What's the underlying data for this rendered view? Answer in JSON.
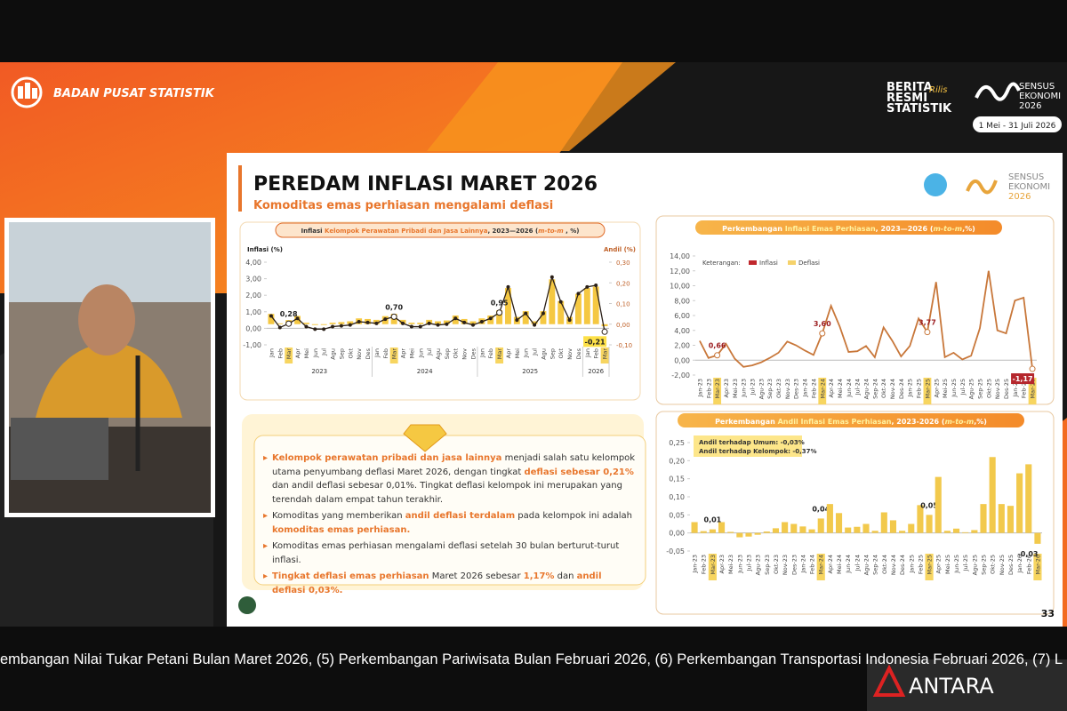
{
  "header": {
    "org": "BADAN PUSAT STATISTIK",
    "brs": [
      "BERITA",
      "RESMI",
      "STATISTIK"
    ],
    "brs_script": "Rilis",
    "sensus": [
      "SENSUS",
      "EKONOMI",
      "2026"
    ],
    "sensus_dates": "1 Mei - 31 Juli 2026"
  },
  "slide": {
    "title": "PEREDAM INFLASI MARET 2026",
    "subtitle": "Komoditas emas perhiasan mengalami deflasi",
    "logo_sensus": [
      "SENSUS",
      "EKONOMI",
      "2026"
    ],
    "page": "33",
    "bullets": [
      [
        {
          "text": "Kelompok perawatan pribadi dan jasa lainnya",
          "em": true
        },
        {
          "text": " menjadi salah satu kelompok utama penyumbang deflasi Maret 2026, dengan tingkat "
        },
        {
          "text": "deflasi sebesar 0,21%",
          "em": true
        },
        {
          "text": " dan andil deflasi sebesar 0,01%. Tingkat deflasi kelompok ini merupakan yang terendah dalam empat tahun terakhir."
        }
      ],
      [
        {
          "text": "Komoditas yang memberikan "
        },
        {
          "text": "andil deflasi terdalam",
          "em": true
        },
        {
          "text": " pada kelompok ini adalah "
        },
        {
          "text": "komoditas emas perhiasan.",
          "em": true
        }
      ],
      [
        {
          "text": "Komoditas emas perhiasan mengalami deflasi setelah 30 bulan berturut-turut inflasi."
        }
      ],
      [
        {
          "text": "Tingkat deflasi emas perhiasan",
          "em": true
        },
        {
          "text": " Maret 2026 sebesar "
        },
        {
          "text": "1,17%",
          "em": true
        },
        {
          "text": " dan "
        },
        {
          "text": "andil deflasi 0,03%.",
          "em": true
        }
      ]
    ]
  },
  "ticker": "embangan Nilai Tukar Petani Bulan Maret 2026, (5) Perkembangan Pariwisata Bulan Februari 2026, (6) Perkembangan Transportasi Indonesia Februari 2026, (7) L",
  "watermark": "ANTARA",
  "chart_data": [
    {
      "type": "bar-line",
      "title": [
        "Inflasi ",
        "Kelompok Perawatan Pribadi dan Jasa Lainnya",
        ", 2023—2026 (",
        "m-to-m",
        " , %)"
      ],
      "y_label": "Inflasi (%)",
      "y2_label": "Andil (%)",
      "categories": [
        "Jan",
        "Feb",
        "Mar",
        "Apr",
        "Mei",
        "Jun",
        "Jul",
        "Agu",
        "Sep",
        "Okt",
        "Nov",
        "Des",
        "Jan",
        "Feb",
        "Mar",
        "Apr",
        "Mei",
        "Jun",
        "Jul",
        "Agu",
        "Sep",
        "Okt",
        "Nov",
        "Des",
        "Jan",
        "Feb",
        "Mar",
        "Apr",
        "Mei",
        "Jun",
        "Jul",
        "Agu",
        "Sep",
        "Okt",
        "Nov",
        "Des",
        "Jan",
        "Feb",
        "Mar"
      ],
      "year_labels": [
        "2023",
        "2024",
        "2025",
        "2026"
      ],
      "ylim": [
        -1,
        4
      ],
      "yticks": [
        {
          "value": -1,
          "label": "-1,00"
        },
        {
          "value": 0,
          "label": "0,00"
        },
        {
          "value": 1,
          "label": "1,00"
        },
        {
          "value": 2,
          "label": "2,00"
        },
        {
          "value": 3,
          "label": "3,00"
        },
        {
          "value": 4,
          "label": "4,00"
        }
      ],
      "y2lim": [
        -0.1,
        0.3
      ],
      "y2ticks": [
        {
          "value": -0.1,
          "label": "-0,10"
        },
        {
          "value": 0,
          "label": "0,00"
        },
        {
          "value": 0.1,
          "label": "0,10"
        },
        {
          "value": 0.2,
          "label": "0,20"
        },
        {
          "value": 0.3,
          "label": "0,30"
        }
      ],
      "grid": false,
      "label_color": "#222222",
      "negative_label_fill": "#fde047",
      "series": [
        {
          "type": "bar",
          "axis": "y2",
          "color": "#f5c842",
          "values": [
            0.05,
            0.004,
            0.02,
            0.04,
            0.007,
            -0.004,
            -0.004,
            0.007,
            0.01,
            0.014,
            0.028,
            0.025,
            0.021,
            0.039,
            0.05,
            0.021,
            0.007,
            0.007,
            0.021,
            0.014,
            0.018,
            0.042,
            0.025,
            0.014,
            0.028,
            0.042,
            0.067,
            0.175,
            0.035,
            0.063,
            0.014,
            0.063,
            0.217,
            0.112,
            0.035,
            0.147,
            0.175,
            0.182,
            -0.01
          ]
        },
        {
          "type": "line",
          "color": "#2b2018",
          "values": [
            0.75,
            0.05,
            0.28,
            0.6,
            0.1,
            -0.05,
            -0.05,
            0.1,
            0.15,
            0.2,
            0.4,
            0.35,
            0.3,
            0.55,
            0.7,
            0.3,
            0.1,
            0.1,
            0.3,
            0.2,
            0.25,
            0.6,
            0.35,
            0.2,
            0.4,
            0.6,
            0.95,
            2.5,
            0.5,
            0.9,
            0.2,
            0.9,
            3.1,
            1.6,
            0.5,
            2.1,
            2.5,
            2.6,
            -0.21
          ],
          "value_labels": [
            null,
            null,
            "0,28",
            null,
            null,
            null,
            null,
            null,
            null,
            null,
            null,
            null,
            null,
            null,
            "0,70",
            null,
            null,
            null,
            null,
            null,
            null,
            null,
            null,
            null,
            null,
            null,
            "0,95",
            null,
            null,
            null,
            null,
            null,
            null,
            null,
            null,
            null,
            null,
            null,
            "-0,21"
          ]
        }
      ]
    },
    {
      "type": "line",
      "title": [
        "Perkembangan ",
        "Inflasi Emas Perhiasan",
        ", 2023—2026 (",
        "m-to-m",
        ",%)"
      ],
      "legend": {
        "title": "Keterangan:",
        "items": [
          {
            "label": "Inflasi",
            "color": "#c0282d"
          },
          {
            "label": "Deflasi",
            "color": "#f5d26b"
          }
        ]
      },
      "categories": [
        "Jan-23",
        "Feb-23",
        "Mar-23",
        "Apr-23",
        "Mei-23",
        "Jun-23",
        "Jul-23",
        "Agu-23",
        "Sep-23",
        "Okt-23",
        "Nov-23",
        "Des-23",
        "Jan-24",
        "Feb-24",
        "Mar-24",
        "Apr-24",
        "Mei-24",
        "Jun-24",
        "Jul-24",
        "Agu-24",
        "Sep-24",
        "Okt-24",
        "Nov-24",
        "Des-24",
        "Jan-25",
        "Feb-25",
        "Mar-25",
        "Apr-25",
        "Mei-25",
        "Jun-25",
        "Jul-25",
        "Agu-25",
        "Sep-25",
        "Okt-25",
        "Nov-25",
        "Des-25",
        "Jan-26",
        "Feb-26",
        "Mar-26"
      ],
      "ylim": [
        -2,
        14
      ],
      "yticks": [
        {
          "value": -2,
          "label": "-2,00"
        },
        {
          "value": 0,
          "label": "0,00"
        },
        {
          "value": 2,
          "label": "2,00"
        },
        {
          "value": 4,
          "label": "4,00"
        },
        {
          "value": 6,
          "label": "6,00"
        },
        {
          "value": 8,
          "label": "8,00"
        },
        {
          "value": 10,
          "label": "10,00"
        },
        {
          "value": 12,
          "label": "12,00"
        },
        {
          "value": 14,
          "label": "14,00"
        }
      ],
      "grid": false,
      "label_color": "#9b1c1f",
      "negative_label_fill": "#b5272d",
      "series": [
        {
          "type": "line",
          "color": "#c8773a",
          "values": [
            2.6,
            0.3,
            0.66,
            2.2,
            0.2,
            -0.9,
            -0.7,
            -0.3,
            0.3,
            1.0,
            2.5,
            2.0,
            1.3,
            0.7,
            3.6,
            7.3,
            4.5,
            1.1,
            1.2,
            1.9,
            0.4,
            4.4,
            2.6,
            0.5,
            1.9,
            5.6,
            3.77,
            10.5,
            0.4,
            1.0,
            0.1,
            0.6,
            4.3,
            12.0,
            4.0,
            3.6,
            8.0,
            8.4,
            -1.17
          ],
          "value_labels": [
            null,
            null,
            "0,66",
            null,
            null,
            null,
            null,
            null,
            null,
            null,
            null,
            null,
            null,
            null,
            "3,60",
            null,
            null,
            null,
            null,
            null,
            null,
            null,
            null,
            null,
            null,
            null,
            "3,77",
            null,
            null,
            null,
            null,
            null,
            null,
            null,
            null,
            null,
            null,
            null,
            "-1,17"
          ]
        }
      ]
    },
    {
      "type": "bar",
      "title": [
        "Perkembangan ",
        "Andil Inflasi Emas Perhiasan",
        ", 2023-2026 (",
        "m-to-m",
        ",%)"
      ],
      "annotation": [
        "Andil terhadap Umum: -0,03%",
        "Andil terhadap Kelompok: -0,37%"
      ],
      "categories": [
        "Jan-23",
        "Feb-23",
        "Mar-23",
        "Apr-23",
        "Mei-23",
        "Jun-23",
        "Jul-23",
        "Agu-23",
        "Sep-23",
        "Okt-23",
        "Nov-23",
        "Des-23",
        "Jan-24",
        "Feb-24",
        "Mar-24",
        "Apr-24",
        "Mei-24",
        "Jun-24",
        "Jul-24",
        "Agu-24",
        "Sep-24",
        "Okt-24",
        "Nov-24",
        "Des-24",
        "Jan-25",
        "Feb-25",
        "Mar-25",
        "Apr-25",
        "Mei-25",
        "Jun-25",
        "Jul-25",
        "Agu-25",
        "Sep-25",
        "Okt-25",
        "Nov-25",
        "Des-25",
        "Jan-26",
        "Feb-26",
        "Mar-26"
      ],
      "ylim": [
        -0.05,
        0.25
      ],
      "yticks": [
        {
          "value": -0.05,
          "label": "-0,05"
        },
        {
          "value": 0,
          "label": "0,00"
        },
        {
          "value": 0.05,
          "label": "0,05"
        },
        {
          "value": 0.1,
          "label": "0,10"
        },
        {
          "value": 0.15,
          "label": "0,15"
        },
        {
          "value": 0.2,
          "label": "0,20"
        },
        {
          "value": 0.25,
          "label": "0,25"
        }
      ],
      "grid": false,
      "label_color": "#222222",
      "series": [
        {
          "type": "bar",
          "color": "#f2c94c",
          "values": [
            0.03,
            0.005,
            0.01,
            0.03,
            0.003,
            -0.012,
            -0.01,
            -0.005,
            0.004,
            0.013,
            0.03,
            0.025,
            0.018,
            0.01,
            0.04,
            0.08,
            0.055,
            0.015,
            0.017,
            0.025,
            0.006,
            0.057,
            0.035,
            0.006,
            0.025,
            0.077,
            0.05,
            0.155,
            0.006,
            0.012,
            0.002,
            0.008,
            0.08,
            0.21,
            0.08,
            0.075,
            0.165,
            0.19,
            -0.03
          ],
          "value_labels": [
            null,
            null,
            "0,01",
            null,
            null,
            null,
            null,
            null,
            null,
            null,
            null,
            null,
            null,
            null,
            "0,04",
            null,
            null,
            null,
            null,
            null,
            null,
            null,
            null,
            null,
            null,
            null,
            "0,05",
            null,
            null,
            null,
            null,
            null,
            null,
            null,
            null,
            null,
            null,
            null,
            "-0,03"
          ]
        }
      ]
    }
  ]
}
